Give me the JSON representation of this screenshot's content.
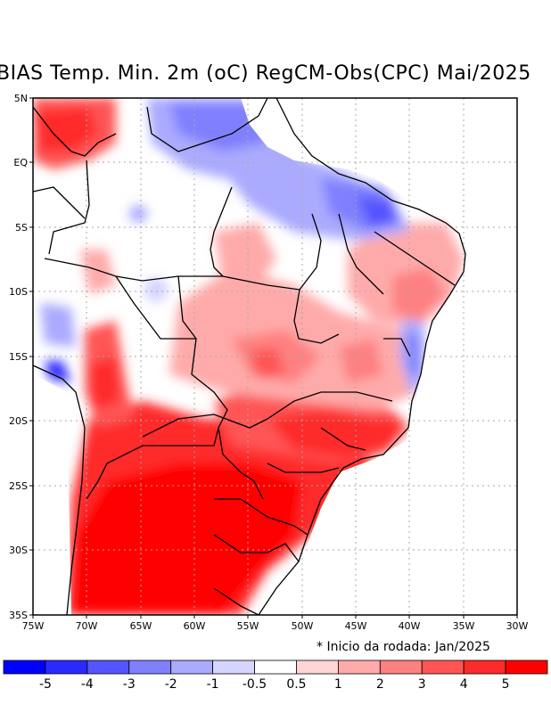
{
  "title": "BIAS Temp. Min. 2m (oC) RegCM-Obs(CPC) Mai/2025",
  "map": {
    "lat_ticks": [
      "5N",
      "EQ",
      "5S",
      "10S",
      "15S",
      "20S",
      "25S",
      "30S",
      "35S"
    ],
    "lon_ticks": [
      "75W",
      "70W",
      "65W",
      "60W",
      "55W",
      "50W",
      "45W",
      "40W",
      "35W",
      "30W"
    ],
    "bounds": {
      "lon_min": -75,
      "lon_max": -30,
      "lat_min": -35,
      "lat_max": 5
    }
  },
  "run_note": "* Inicio da rodada: Jan/2025",
  "colorbar": {
    "colors": [
      "#0000ff",
      "#2a2aff",
      "#5555ff",
      "#8080ff",
      "#aaaaff",
      "#d5d5ff",
      "#ffffff",
      "#ffd5d5",
      "#ffaaaa",
      "#ff8080",
      "#ff5555",
      "#ff2a2a",
      "#ff0000"
    ],
    "labels": [
      "-5",
      "-4",
      "-3",
      "-2",
      "-1",
      "-0.5",
      "0.5",
      "1",
      "2",
      "3",
      "4",
      "5"
    ]
  }
}
